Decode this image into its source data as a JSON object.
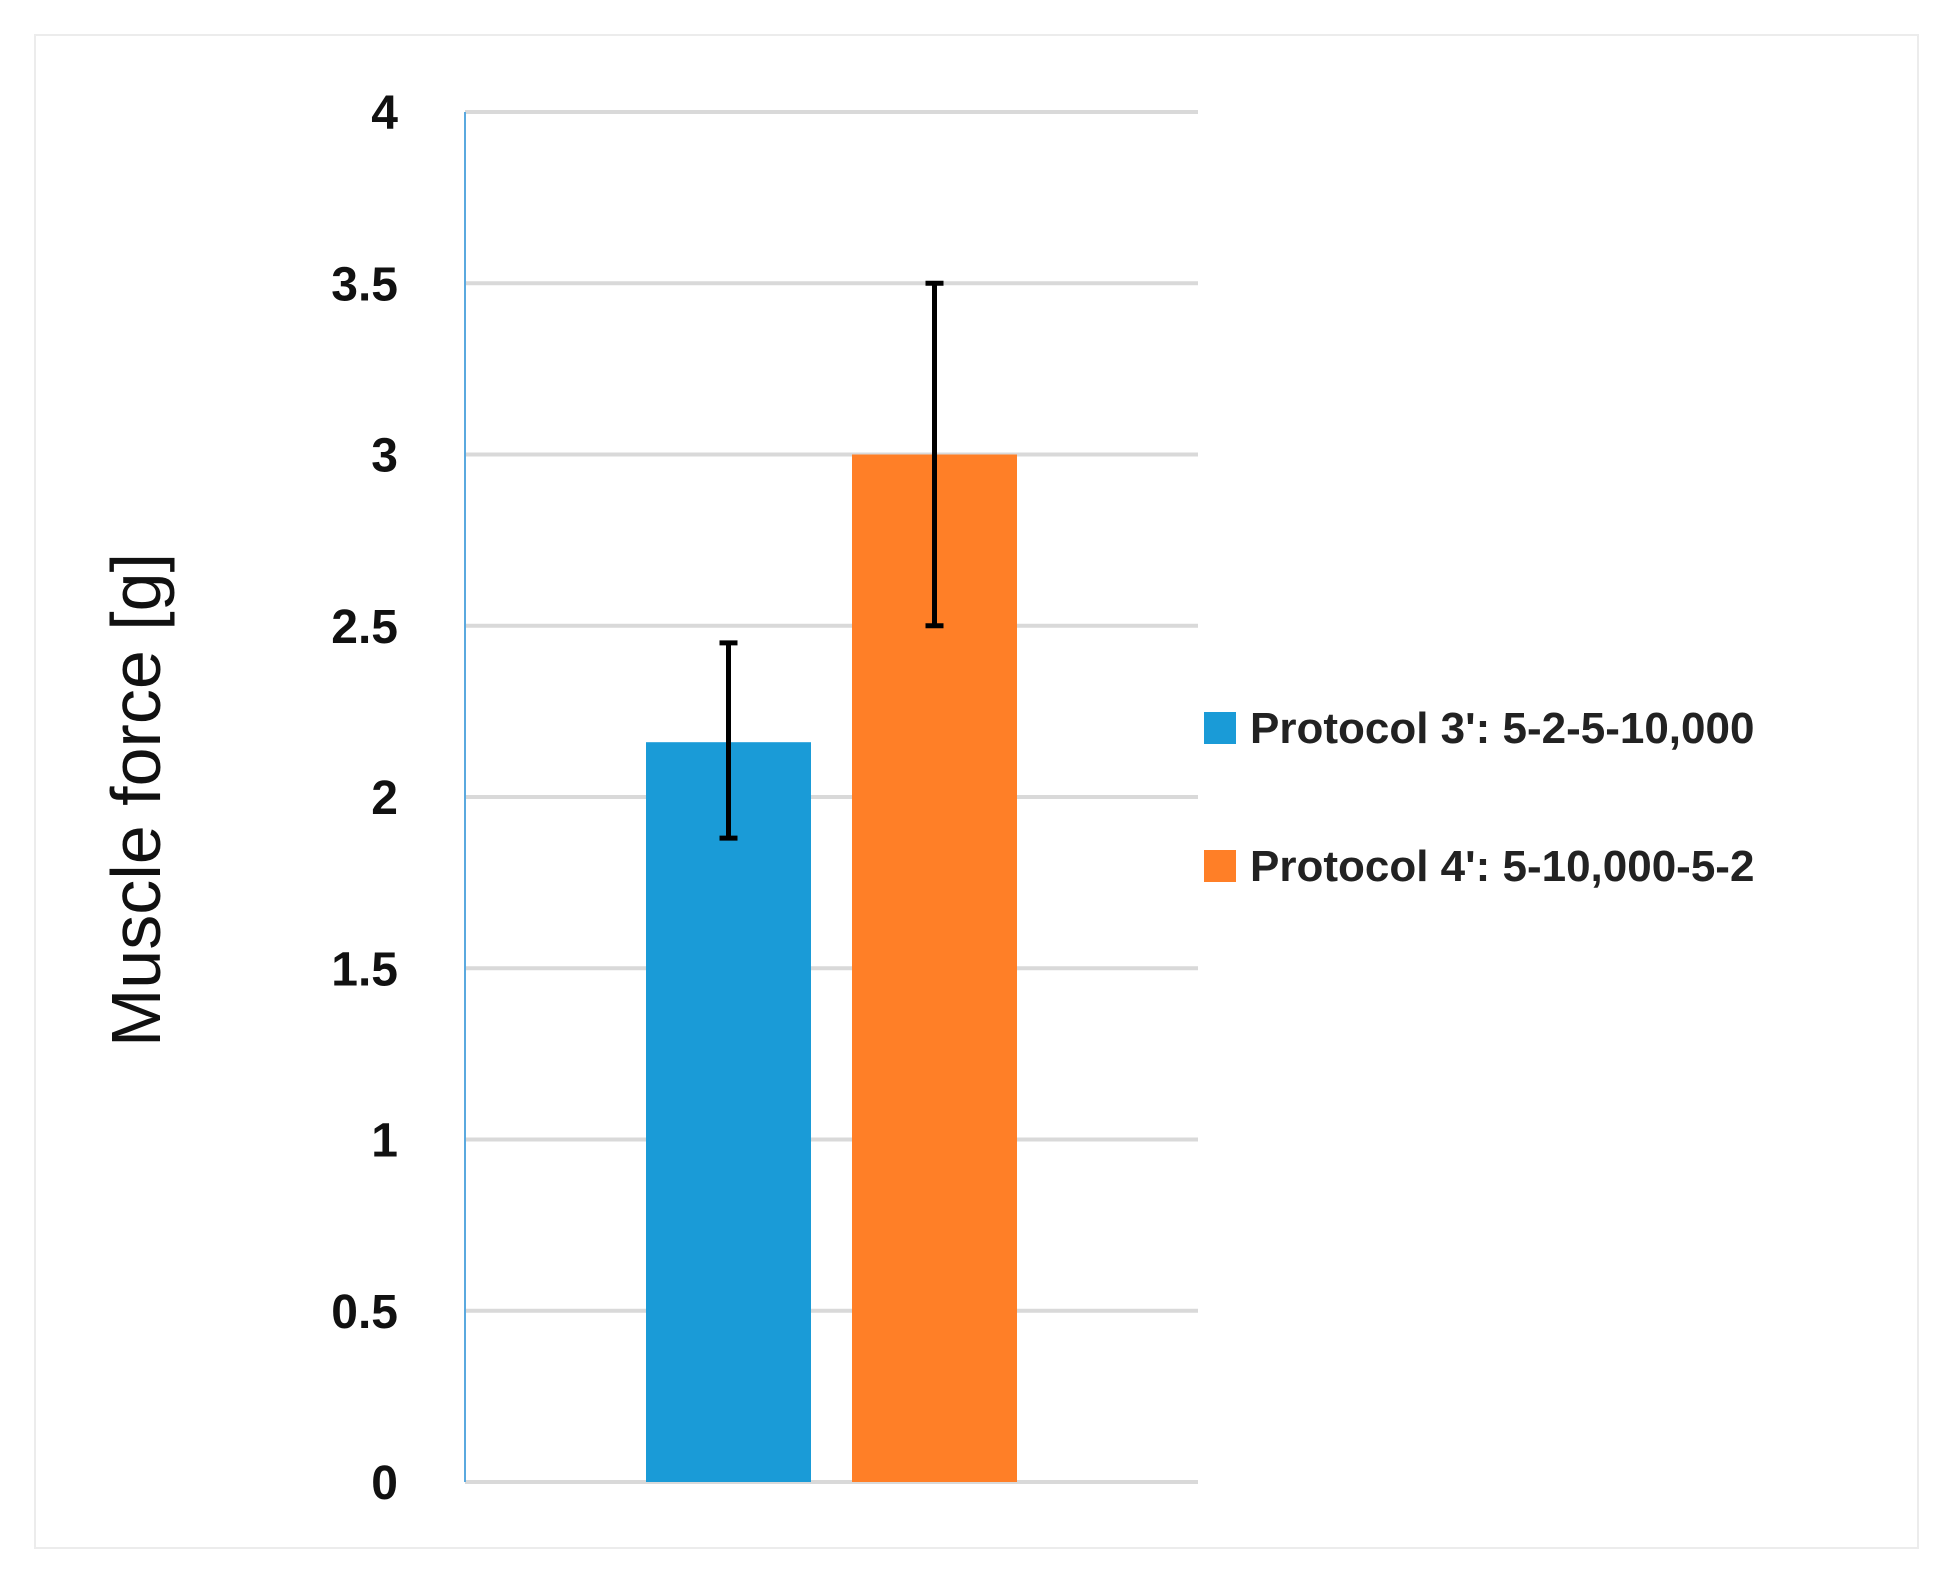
{
  "chart_data": {
    "type": "bar",
    "ylabel": "Muscle force [g]",
    "ylim": [
      0,
      4
    ],
    "yticks": [
      "0",
      "0.5",
      "1",
      "1.5",
      "2",
      "2.5",
      "3",
      "3.5",
      "4"
    ],
    "ytick_values": [
      0,
      0.5,
      1,
      1.5,
      2,
      2.5,
      3,
      3.5,
      4
    ],
    "grid": true,
    "legend_position": "right",
    "series": [
      {
        "name": "Protocol 3': 5-2-5-10,000",
        "value": 2.16,
        "error_low": 1.88,
        "error_high": 2.45,
        "color": "#1a9bd7"
      },
      {
        "name": "Protocol 4': 5-10,000-5-2",
        "value": 3.0,
        "error_low": 2.5,
        "error_high": 3.5,
        "color": "#ff7f27"
      }
    ],
    "colors": {
      "gridline": "#d9d9d9",
      "axis_line": "#5aa9df",
      "error_bar": "#000000"
    }
  }
}
